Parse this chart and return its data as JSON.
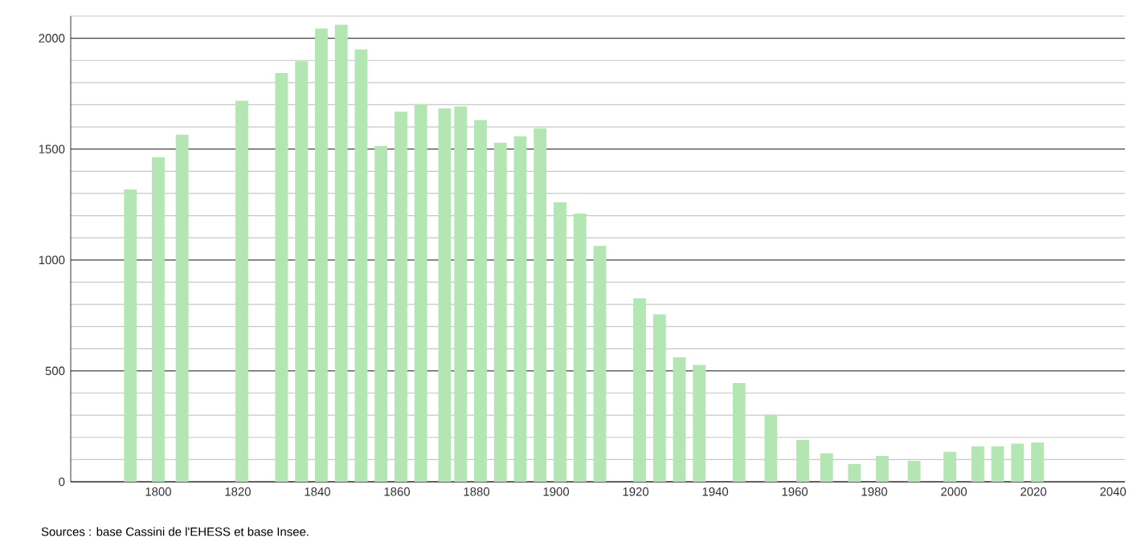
{
  "chart_data": {
    "type": "bar",
    "x": [
      1793,
      1800,
      1806,
      1821,
      1831,
      1836,
      1841,
      1846,
      1851,
      1856,
      1861,
      1866,
      1872,
      1876,
      1881,
      1886,
      1891,
      1896,
      1901,
      1906,
      1911,
      1921,
      1926,
      1931,
      1936,
      1946,
      1954,
      1962,
      1968,
      1975,
      1982,
      1990,
      1999,
      2006,
      2011,
      2016,
      2021
    ],
    "values": [
      1318,
      1464,
      1565,
      1718,
      1843,
      1896,
      2044,
      2061,
      1950,
      1514,
      1669,
      1703,
      1684,
      1693,
      1631,
      1529,
      1558,
      1594,
      1260,
      1209,
      1064,
      827,
      755,
      561,
      527,
      445,
      302,
      189,
      128,
      80,
      116,
      94,
      135,
      160,
      160,
      172,
      177
    ],
    "color": "#b3e6b3",
    "xlim": [
      1778,
      2043
    ],
    "xticks": [
      1800,
      1820,
      1840,
      1860,
      1880,
      1900,
      1920,
      1940,
      1960,
      1980,
      2000,
      2020,
      2040
    ],
    "ylim": [
      0,
      2100
    ],
    "yticks": [
      0,
      {
        "value": 100,
        "label": null
      },
      {
        "value": 200,
        "label": null
      },
      {
        "value": 300,
        "label": null
      },
      {
        "value": 400,
        "label": null
      },
      500,
      {
        "value": 600,
        "label": null
      },
      {
        "value": 700,
        "label": null
      },
      {
        "value": 800,
        "label": null
      },
      {
        "value": 900,
        "label": null
      },
      1000,
      {
        "value": 1100,
        "label": null
      },
      {
        "value": 1200,
        "label": null
      },
      {
        "value": 1300,
        "label": null
      },
      {
        "value": 1400,
        "label": null
      },
      1500,
      {
        "value": 1600,
        "label": null
      },
      {
        "value": 1700,
        "label": null
      },
      {
        "value": 1800,
        "label": null
      },
      {
        "value": 1900,
        "label": null
      },
      2000,
      {
        "value": 2100,
        "label": null
      }
    ],
    "grid": "y",
    "annotations": [
      "Sources : base Cassini de l'EHESS et base Insee."
    ]
  }
}
